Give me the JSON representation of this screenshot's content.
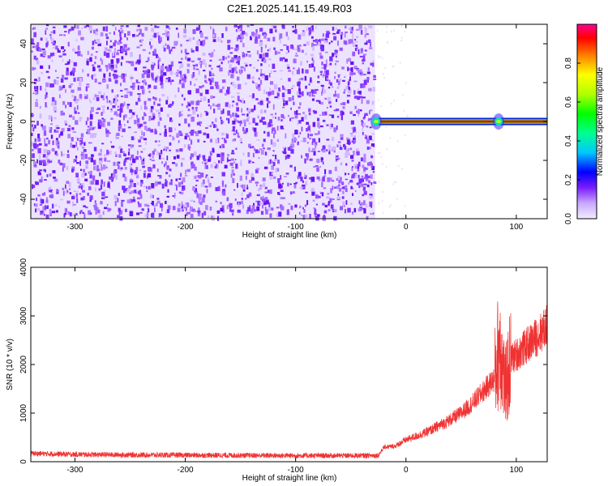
{
  "title": "C2E1.2025.141.15.49.R03",
  "chart_data": [
    {
      "type": "heatmap",
      "xlabel": "Height of straight line (km)",
      "ylabel": "Frequency (Hz)",
      "xlim": [
        -340,
        128
      ],
      "ylim": [
        -50,
        50
      ],
      "x_ticks": [
        -300,
        -200,
        -100,
        0,
        100
      ],
      "y_ticks": [
        -40,
        -20,
        0,
        20,
        40
      ],
      "colorbar": {
        "label": "Normalized spectral amplitude",
        "range": [
          0,
          1
        ],
        "ticks": [
          0.0,
          0.2,
          0.4,
          0.6,
          0.8
        ]
      },
      "noise_region": {
        "x_range": [
          -340,
          -28
        ],
        "y_range": [
          -50,
          50
        ]
      },
      "signal_band": {
        "x_range": [
          -28,
          128
        ],
        "frequency": 0,
        "peak_amplitude": 0.9
      },
      "bursts": [
        {
          "x": -27,
          "frequency": 0,
          "amplitude": 0.6
        },
        {
          "x": 84,
          "frequency": 0,
          "amplitude": 0.45
        }
      ]
    },
    {
      "type": "line",
      "xlabel": "Height of straight line (km)",
      "ylabel": "SNR (10 * v/v)",
      "xlim": [
        -340,
        128
      ],
      "ylim": [
        0,
        4000
      ],
      "x_ticks": [
        -300,
        -200,
        -100,
        0,
        100
      ],
      "y_ticks": [
        0,
        1000,
        2000,
        3000,
        4000
      ],
      "color": "#f03232",
      "series": [
        {
          "x": [
            -340,
            -300,
            -250,
            -200,
            -150,
            -100,
            -50,
            -25,
            -20,
            -10,
            0,
            10,
            20,
            30,
            40,
            50,
            60,
            70,
            80,
            85,
            90,
            95,
            100,
            110,
            120,
            128
          ],
          "values": [
            170,
            150,
            140,
            135,
            130,
            125,
            125,
            130,
            300,
            320,
            450,
            530,
            620,
            740,
            860,
            1000,
            1200,
            1450,
            1700,
            2500,
            1500,
            2100,
            2200,
            2400,
            2600,
            2800
          ]
        }
      ]
    }
  ]
}
